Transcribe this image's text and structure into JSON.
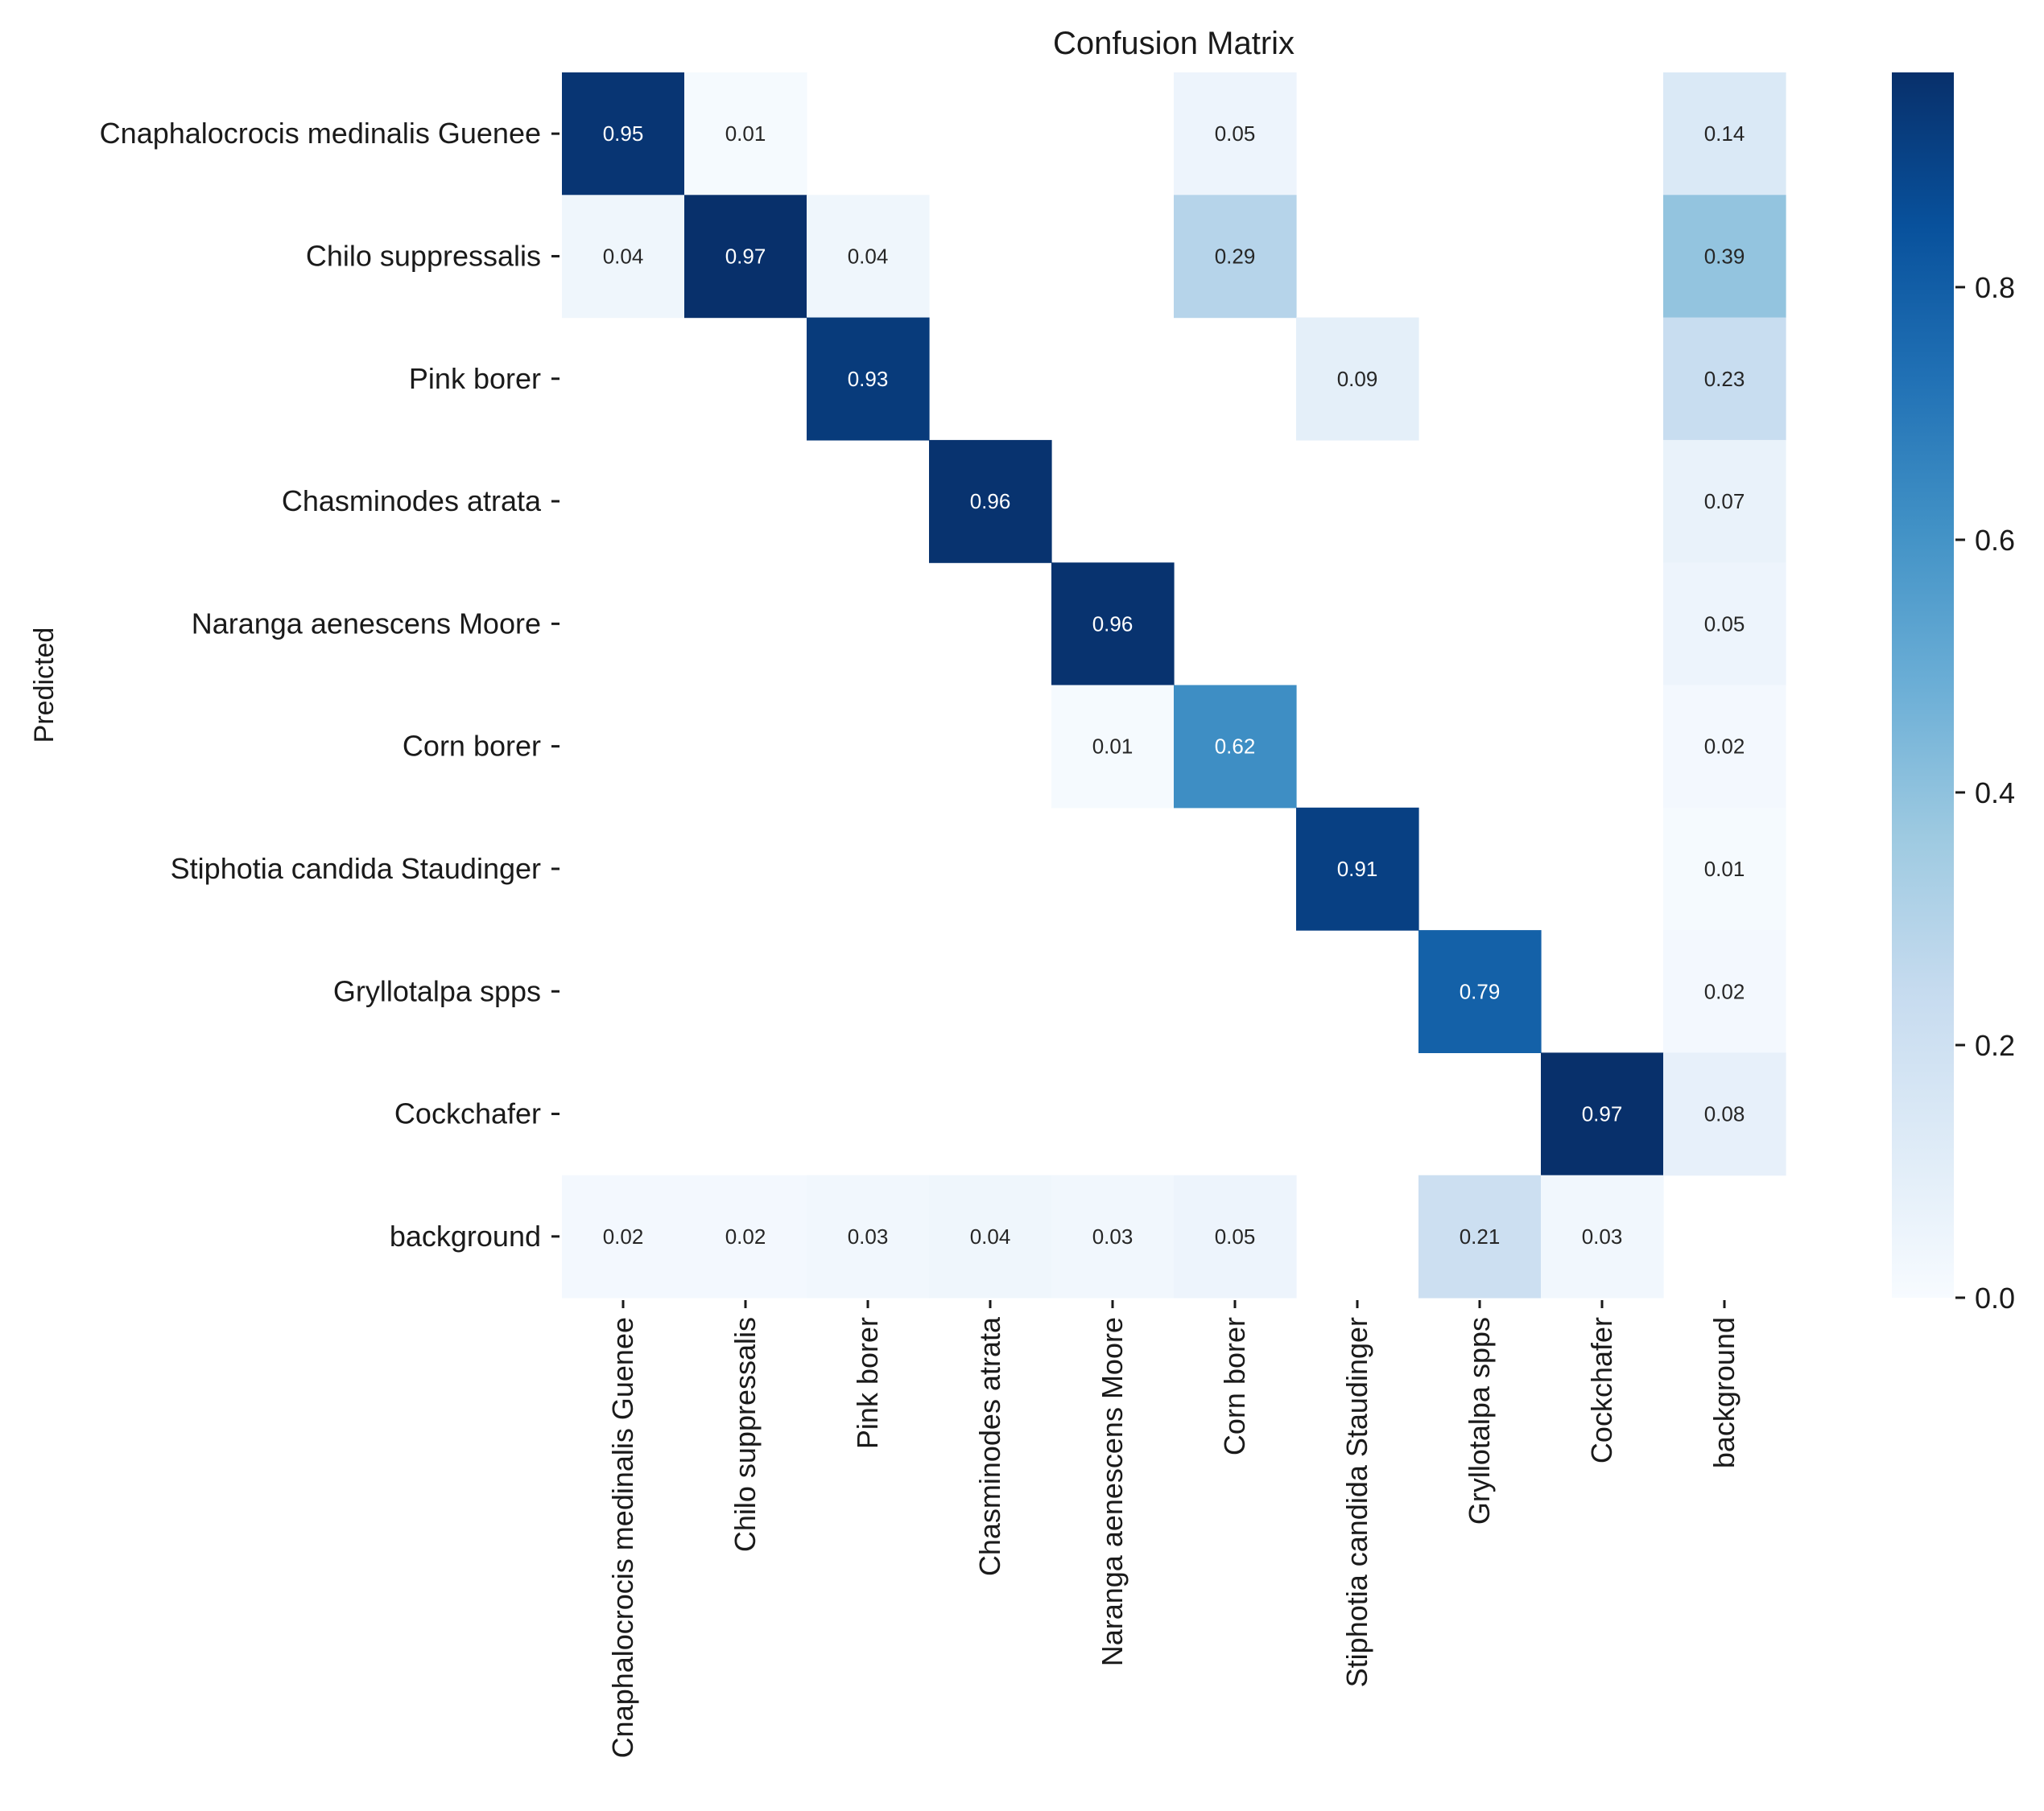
{
  "chart_data": {
    "type": "heatmap",
    "title": "Confusion Matrix",
    "xlabel": "",
    "ylabel": "Predicted",
    "rows": [
      "Cnaphalocrocis medinalis Guenee",
      "Chilo suppressalis",
      "Pink borer",
      "Chasminodes atrata",
      "Naranga aenescens Moore",
      "Corn borer",
      "Stiphotia candida Staudinger",
      "Gryllotalpa spps",
      "Cockchafer",
      "background"
    ],
    "columns": [
      "Cnaphalocrocis medinalis Guenee",
      "Chilo suppressalis",
      "Pink borer",
      "Chasminodes atrata",
      "Naranga aenescens Moore",
      "Corn borer",
      "Stiphotia candida Staudinger",
      "Gryllotalpa spps",
      "Cockchafer",
      "background"
    ],
    "values": [
      [
        0.95,
        0.01,
        null,
        null,
        null,
        0.05,
        null,
        null,
        null,
        0.14
      ],
      [
        0.04,
        0.97,
        0.04,
        null,
        null,
        0.29,
        null,
        null,
        null,
        0.39
      ],
      [
        null,
        null,
        0.93,
        null,
        null,
        null,
        0.09,
        null,
        null,
        0.23
      ],
      [
        null,
        null,
        null,
        0.96,
        null,
        null,
        null,
        null,
        null,
        0.07
      ],
      [
        null,
        null,
        null,
        null,
        0.96,
        null,
        null,
        null,
        null,
        0.05
      ],
      [
        null,
        null,
        null,
        null,
        0.01,
        0.62,
        null,
        null,
        null,
        0.02
      ],
      [
        null,
        null,
        null,
        null,
        null,
        null,
        0.91,
        null,
        null,
        0.01
      ],
      [
        null,
        null,
        null,
        null,
        null,
        null,
        null,
        0.79,
        null,
        0.02
      ],
      [
        null,
        null,
        null,
        null,
        null,
        null,
        null,
        null,
        0.97,
        0.08
      ],
      [
        0.02,
        0.02,
        0.03,
        0.04,
        0.03,
        0.05,
        null,
        0.21,
        0.03,
        null
      ]
    ],
    "value_labels": [
      [
        "0.95",
        "0.01",
        "",
        "",
        "",
        "0.05",
        "",
        "",
        "",
        "0.14"
      ],
      [
        "0.04",
        "0.97",
        "0.04",
        "",
        "",
        "0.29",
        "",
        "",
        "",
        "0.39"
      ],
      [
        "",
        "",
        "0.93",
        "",
        "",
        "",
        "0.09",
        "",
        "",
        "0.23"
      ],
      [
        "",
        "",
        "",
        "0.96",
        "",
        "",
        "",
        "",
        "",
        "0.07"
      ],
      [
        "",
        "",
        "",
        "",
        "0.96",
        "",
        "",
        "",
        "",
        "0.05"
      ],
      [
        "",
        "",
        "",
        "",
        "0.01",
        "0.62",
        "",
        "",
        "",
        "0.02"
      ],
      [
        "",
        "",
        "",
        "",
        "",
        "",
        "0.91",
        "",
        "",
        "0.01"
      ],
      [
        "",
        "",
        "",
        "",
        "",
        "",
        "",
        "0.79",
        "",
        "0.02"
      ],
      [
        "",
        "",
        "",
        "",
        "",
        "",
        "",
        "",
        "0.97",
        "0.08"
      ],
      [
        "0.02",
        "0.02",
        "0.03",
        "0.04",
        "0.03",
        "0.05",
        "",
        "0.21",
        "0.03",
        ""
      ]
    ],
    "colorbar": {
      "range": [
        0,
        0.97
      ],
      "ticks": [
        0.0,
        0.2,
        0.4,
        0.6,
        0.8
      ],
      "tick_labels": [
        "0.0",
        "0.2",
        "0.4",
        "0.6",
        "0.8"
      ]
    },
    "colormap": "Blues",
    "colormap_stops": [
      "#f7fbff",
      "#deebf7",
      "#c6dbef",
      "#9ecae1",
      "#6baed6",
      "#4292c6",
      "#2171b5",
      "#08519c",
      "#08306b"
    ],
    "grid": false
  }
}
